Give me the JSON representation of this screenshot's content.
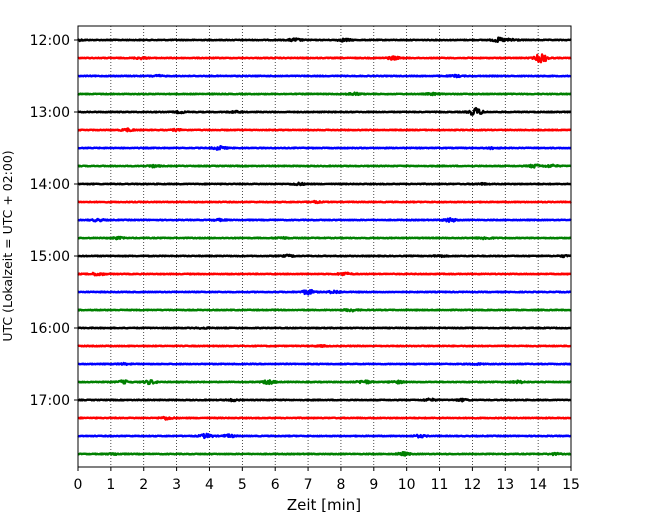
{
  "chart_data": {
    "type": "line",
    "title": "",
    "xlabel": "Zeit  [min]",
    "ylabel": "UTC (Lokalzeit = UTC + 02:00)",
    "xlim": [
      0,
      15
    ],
    "x_ticks": [
      0,
      1,
      2,
      3,
      4,
      5,
      6,
      7,
      8,
      9,
      10,
      11,
      12,
      13,
      14,
      15
    ],
    "y_tick_labels": [
      "12:00",
      "13:00",
      "14:00",
      "15:00",
      "16:00",
      "17:00"
    ],
    "y_tick_rows": [
      0,
      4,
      8,
      12,
      16,
      20
    ],
    "row_minutes": 15,
    "row_count": 24,
    "row_colors": [
      "#000000",
      "#ff0000",
      "#0000ff",
      "#008000"
    ],
    "grid": "vertical dotted lines at each minute",
    "series": [
      {
        "values": [
          [
            0,
            0.25
          ],
          [
            6.6,
            0.6
          ],
          [
            8.1,
            0.55
          ],
          [
            12.8,
            0.8
          ],
          [
            13.2,
            0.5
          ]
        ]
      },
      {
        "values": [
          [
            1.9,
            0.35
          ],
          [
            9.6,
            0.6
          ],
          [
            14.1,
            1.8
          ]
        ]
      },
      {
        "values": [
          [
            2.4,
            0.3
          ],
          [
            11.5,
            0.35
          ]
        ]
      },
      {
        "values": [
          [
            8.4,
            0.5
          ],
          [
            10.8,
            0.35
          ]
        ]
      },
      {
        "values": [
          [
            3.1,
            0.35
          ],
          [
            4.8,
            0.3
          ],
          [
            12.1,
            1.6
          ]
        ]
      },
      {
        "values": [
          [
            1.5,
            0.5
          ],
          [
            3.0,
            0.3
          ]
        ]
      },
      {
        "values": [
          [
            4.3,
            0.7
          ],
          [
            12.6,
            0.3
          ]
        ]
      },
      {
        "values": [
          [
            2.3,
            0.4
          ],
          [
            13.9,
            0.6
          ],
          [
            14.4,
            0.45
          ]
        ]
      },
      {
        "values": [
          [
            6.7,
            0.45
          ],
          [
            12.3,
            0.25
          ]
        ]
      },
      {
        "values": [
          [
            7.2,
            0.3
          ]
        ]
      },
      {
        "values": [
          [
            0.6,
            0.45
          ],
          [
            4.3,
            0.3
          ],
          [
            11.3,
            0.7
          ]
        ]
      },
      {
        "values": [
          [
            1.2,
            0.35
          ],
          [
            6.2,
            0.3
          ],
          [
            12.4,
            0.45
          ]
        ]
      },
      {
        "values": [
          [
            6.4,
            0.35
          ],
          [
            11.0,
            0.3
          ],
          [
            14.8,
            0.3
          ]
        ]
      },
      {
        "values": [
          [
            0.6,
            0.6
          ],
          [
            8.1,
            0.55
          ]
        ]
      },
      {
        "values": [
          [
            7.0,
            0.9
          ],
          [
            7.8,
            0.5
          ]
        ]
      },
      {
        "values": [
          [
            8.3,
            0.45
          ]
        ]
      },
      {
        "values": [
          [
            3.8,
            0.2
          ]
        ]
      },
      {
        "values": [
          [
            7.4,
            0.2
          ]
        ]
      },
      {
        "values": [
          [
            1.4,
            0.25
          ],
          [
            12.1,
            0.25
          ]
        ]
      },
      {
        "values": [
          [
            1.4,
            0.55
          ],
          [
            2.2,
            0.75
          ],
          [
            5.8,
            0.8
          ],
          [
            8.7,
            0.7
          ],
          [
            9.7,
            0.5
          ],
          [
            13.4,
            0.45
          ]
        ]
      },
      {
        "values": [
          [
            4.7,
            0.35
          ],
          [
            10.7,
            0.45
          ],
          [
            11.7,
            0.4
          ]
        ]
      },
      {
        "values": [
          [
            2.7,
            0.55
          ]
        ]
      },
      {
        "values": [
          [
            3.9,
            0.8
          ],
          [
            4.6,
            0.5
          ],
          [
            10.4,
            0.45
          ]
        ]
      },
      {
        "values": [
          [
            1.1,
            0.3
          ],
          [
            9.9,
            0.6
          ],
          [
            14.5,
            0.3
          ]
        ]
      }
    ]
  }
}
